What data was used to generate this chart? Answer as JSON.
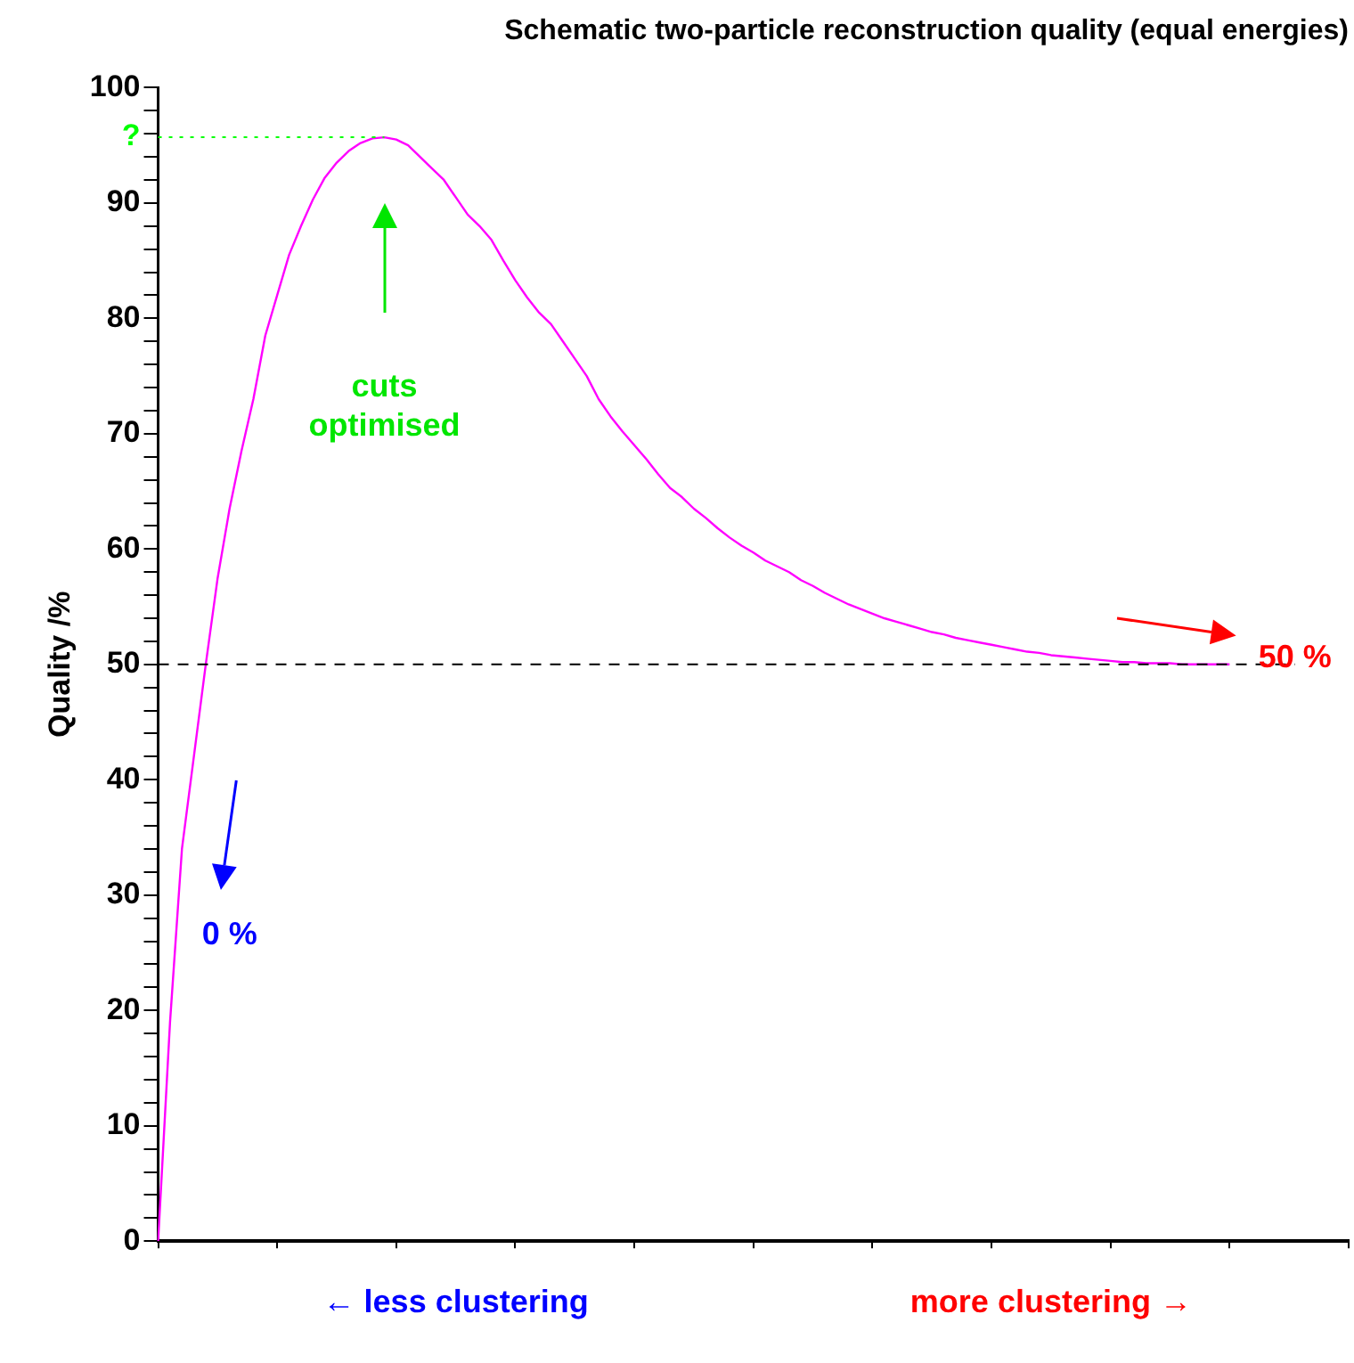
{
  "chart_data": {
    "type": "line",
    "title": "Schematic two-particle reconstruction quality (equal energies)",
    "ylabel": "Quality /%",
    "categories": [
      null,
      null,
      null,
      null,
      null,
      null,
      null,
      null,
      null,
      null,
      null,
      null,
      null,
      null,
      null,
      null,
      null,
      null,
      null,
      null,
      null,
      null,
      null,
      null,
      null,
      null,
      null,
      null,
      null,
      null,
      null,
      null,
      null,
      null,
      null,
      null,
      null,
      null,
      null,
      null,
      null,
      null,
      null,
      null,
      null,
      null,
      null,
      null,
      null,
      null,
      null,
      null,
      null,
      null,
      null,
      null,
      null,
      null,
      null,
      null,
      null,
      null,
      null,
      null,
      null,
      null,
      null,
      null,
      null,
      null,
      null,
      null,
      null,
      null,
      null,
      null,
      null,
      null,
      null,
      null,
      null,
      null,
      null,
      null,
      null,
      null,
      null,
      null,
      null,
      null,
      null,
      null,
      null,
      null,
      null,
      null,
      null,
      null,
      null,
      null,
      null
    ],
    "series": [
      {
        "color": "#ff00ff",
        "values": [
          0,
          19,
          34,
          42,
          50,
          57.5,
          63.5,
          68.5,
          73,
          78.5,
          82,
          85.5,
          88,
          90.3,
          92.2,
          93.5,
          94.5,
          95.2,
          95.6,
          95.7,
          95.5,
          95,
          94,
          93,
          92,
          90.5,
          89,
          88,
          86.8,
          85,
          83.3,
          81.8,
          80.5,
          79.5,
          78,
          76.5,
          75,
          73,
          71.5,
          70.2,
          69,
          67.8,
          66.5,
          65.3,
          64.5,
          63.5,
          62.7,
          61.8,
          61,
          60.3,
          59.7,
          59,
          58.5,
          58,
          57.3,
          56.8,
          56.2,
          55.7,
          55.2,
          54.8,
          54.4,
          54,
          53.7,
          53.4,
          53.1,
          52.8,
          52.6,
          52.3,
          52.1,
          51.9,
          51.7,
          51.5,
          51.3,
          51.1,
          51,
          50.8,
          50.7,
          50.6,
          50.5,
          50.4,
          50.3,
          50.2,
          50.2,
          50.1,
          50.1,
          50.1,
          50,
          50,
          50,
          50,
          50,
          null,
          null,
          null,
          null,
          null,
          null,
          null,
          null,
          null,
          null
        ]
      }
    ],
    "ylim": [
      0,
      100
    ],
    "yticks": [
      0,
      {
        "value": 2,
        "label": null
      },
      {
        "value": 4,
        "label": null
      },
      {
        "value": 6,
        "label": null
      },
      {
        "value": 8,
        "label": null
      },
      10,
      {
        "value": 12,
        "label": null
      },
      {
        "value": 14,
        "label": null
      },
      {
        "value": 16,
        "label": null
      },
      {
        "value": 18,
        "label": null
      },
      20,
      {
        "value": 22,
        "label": null
      },
      {
        "value": 24,
        "label": null
      },
      {
        "value": 26,
        "label": null
      },
      {
        "value": 28,
        "label": null
      },
      30,
      {
        "value": 32,
        "label": null
      },
      {
        "value": 34,
        "label": null
      },
      {
        "value": 36,
        "label": null
      },
      {
        "value": 38,
        "label": null
      },
      40,
      {
        "value": 42,
        "label": null
      },
      {
        "value": 44,
        "label": null
      },
      {
        "value": 46,
        "label": null
      },
      {
        "value": 48,
        "label": null
      },
      50,
      {
        "value": 52,
        "label": null
      },
      {
        "value": 54,
        "label": null
      },
      {
        "value": 56,
        "label": null
      },
      {
        "value": 58,
        "label": null
      },
      60,
      {
        "value": 62,
        "label": null
      },
      {
        "value": 64,
        "label": null
      },
      {
        "value": 66,
        "label": null
      },
      {
        "value": 68,
        "label": null
      },
      70,
      {
        "value": 72,
        "label": null
      },
      {
        "value": 74,
        "label": null
      },
      {
        "value": 76,
        "label": null
      },
      {
        "value": 78,
        "label": null
      },
      80,
      {
        "value": 82,
        "label": null
      },
      {
        "value": 84,
        "label": null
      },
      {
        "value": 86,
        "label": null
      },
      {
        "value": 88,
        "label": null
      },
      90,
      {
        "value": 92,
        "label": null
      },
      {
        "value": 94,
        "label": null
      },
      {
        "value": 96,
        "label": null
      },
      {
        "value": 98,
        "label": null
      },
      100
    ],
    "ref_lines": [
      {
        "axis": "y",
        "value": 50,
        "color": "#000000",
        "line_style": "dashed"
      },
      {
        "axis": "y",
        "value": 95.7,
        "label": "?",
        "color": "#00ff00",
        "line_style": "dotted"
      }
    ],
    "annotations": [
      "cuts optimised",
      "0 %",
      "50 %",
      "← less clustering",
      "more clustering →"
    ],
    "grid": false,
    "legend": false,
    "marker": "none",
    "line_style": "solid"
  }
}
